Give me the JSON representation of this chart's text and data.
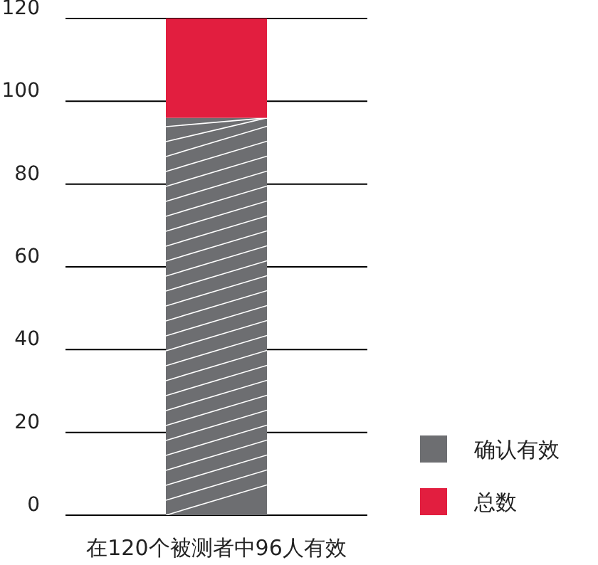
{
  "chart_data": {
    "type": "bar",
    "stacked": true,
    "categories": [
      "在120个被测者中96人有效"
    ],
    "series": [
      {
        "name": "确认有效",
        "color": "#6d6e71",
        "values": [
          96
        ]
      },
      {
        "name": "总数",
        "color": "#e21e3f",
        "values": [
          24
        ]
      }
    ],
    "ylim": [
      0,
      120
    ],
    "yticks": [
      0,
      20,
      40,
      60,
      80,
      100,
      120
    ],
    "grid": "y",
    "legend": "bottom right"
  }
}
